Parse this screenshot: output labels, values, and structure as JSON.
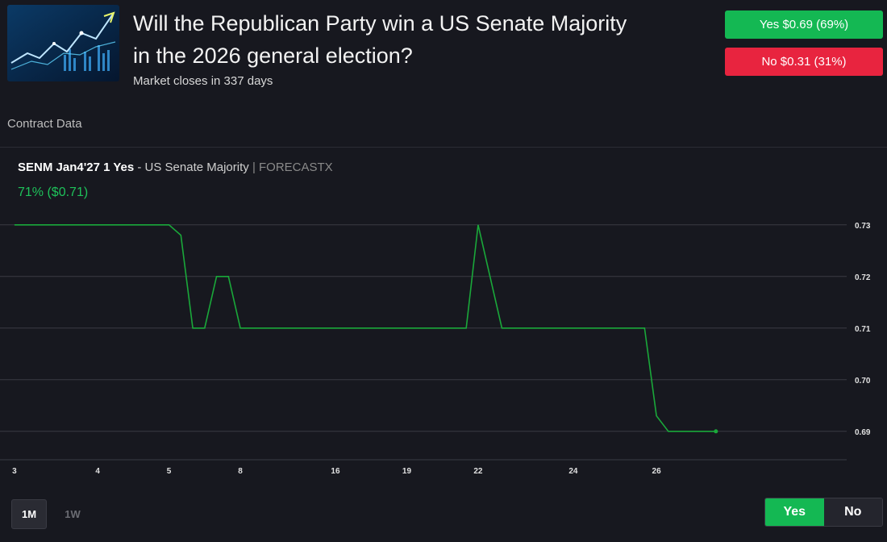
{
  "market": {
    "title_line1": "Will the Republican Party win a US Senate Majority",
    "title_line2": "in the 2026 general election?",
    "closes": "Market closes in 337 days",
    "yes_button": "Yes $0.69 (69%)",
    "no_button": "No $0.31 (31%)"
  },
  "section": {
    "label": "Contract Data"
  },
  "contract": {
    "ticker": "SENM Jan4'27 1 Yes",
    "description": " - US Senate Majority ",
    "separator": "|",
    "exchange": " FORECASTX",
    "current": "71% ($0.71)"
  },
  "chart_data": {
    "type": "line",
    "title": "SENM Jan4'27 1 Yes - US Senate Majority",
    "xlabel": "",
    "ylabel": "",
    "x_ticks": [
      "3",
      "4",
      "5",
      "8",
      "16",
      "19",
      "22",
      "24",
      "26"
    ],
    "x_tick_positions": [
      0,
      3.5,
      6.5,
      9.5,
      13.5,
      16.5,
      19.5,
      23.5,
      27
    ],
    "y_ticks": [
      0.73,
      0.72,
      0.71,
      0.7,
      0.69
    ],
    "ylim": [
      0.6845,
      0.7345
    ],
    "xlim": [
      -0.2,
      35
    ],
    "series": [
      {
        "name": "Yes",
        "color": "#1aa83a",
        "x": [
          0,
          6.5,
          7,
          7.5,
          8,
          8.5,
          9,
          9.5,
          19,
          19.5,
          20.5,
          26.5,
          27,
          27.5,
          29.5
        ],
        "y": [
          0.73,
          0.73,
          0.728,
          0.71,
          0.71,
          0.72,
          0.72,
          0.71,
          0.71,
          0.73,
          0.71,
          0.71,
          0.693,
          0.69,
          0.69
        ]
      }
    ],
    "grid": true
  },
  "controls": {
    "range_1m": "1M",
    "range_1w": "1W",
    "toggle_yes": "Yes",
    "toggle_no": "No"
  }
}
